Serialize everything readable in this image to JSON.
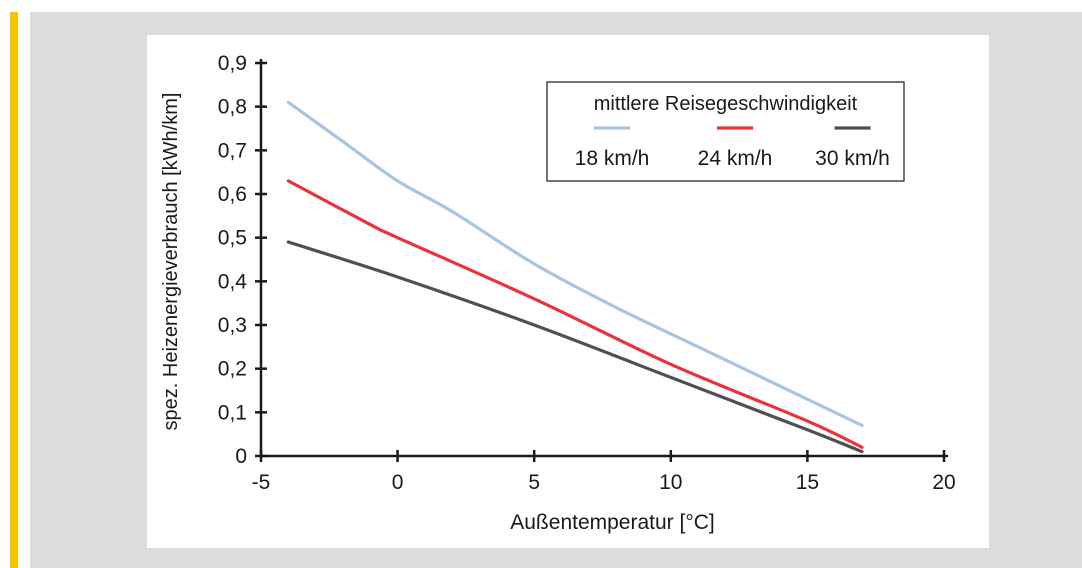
{
  "chart_data": {
    "type": "line",
    "xlabel": "Außentemperatur [°C]",
    "ylabel": "spez. Heizenergieverbrauch [kWh/km]",
    "xlim": [
      -5,
      20
    ],
    "ylim": [
      0,
      0.9
    ],
    "x_ticks": [
      -5,
      0,
      5,
      10,
      15,
      20
    ],
    "x_tick_labels": [
      "-5",
      "0",
      "5",
      "10",
      "15",
      "20"
    ],
    "y_ticks": [
      0,
      0.1,
      0.2,
      0.3,
      0.4,
      0.5,
      0.6,
      0.7,
      0.8,
      0.9
    ],
    "y_tick_labels": [
      "0",
      "0,1",
      "0,2",
      "0,3",
      "0,4",
      "0,5",
      "0,6",
      "0,7",
      "0,8",
      "0,9"
    ],
    "grid": false,
    "legend": {
      "title": "mittlere Reisegeschwindigkeit",
      "placement": "top-right",
      "layout": "horizontal"
    },
    "series": [
      {
        "name": "18 km/h",
        "color": "#a8c4e2",
        "x": [
          -4,
          -2,
          0,
          2,
          5,
          8,
          11,
          14,
          17
        ],
        "y": [
          0.81,
          0.72,
          0.63,
          0.56,
          0.44,
          0.34,
          0.25,
          0.16,
          0.07
        ]
      },
      {
        "name": "24 km/h",
        "color": "#e8323c",
        "x": [
          -4,
          -1,
          0,
          5,
          10,
          15,
          17
        ],
        "y": [
          0.63,
          0.53,
          0.5,
          0.36,
          0.21,
          0.08,
          0.02
        ]
      },
      {
        "name": "30 km/h",
        "color": "#505050",
        "x": [
          -4,
          0,
          5,
          10,
          15,
          17
        ],
        "y": [
          0.49,
          0.41,
          0.3,
          0.18,
          0.06,
          0.01
        ]
      }
    ]
  }
}
